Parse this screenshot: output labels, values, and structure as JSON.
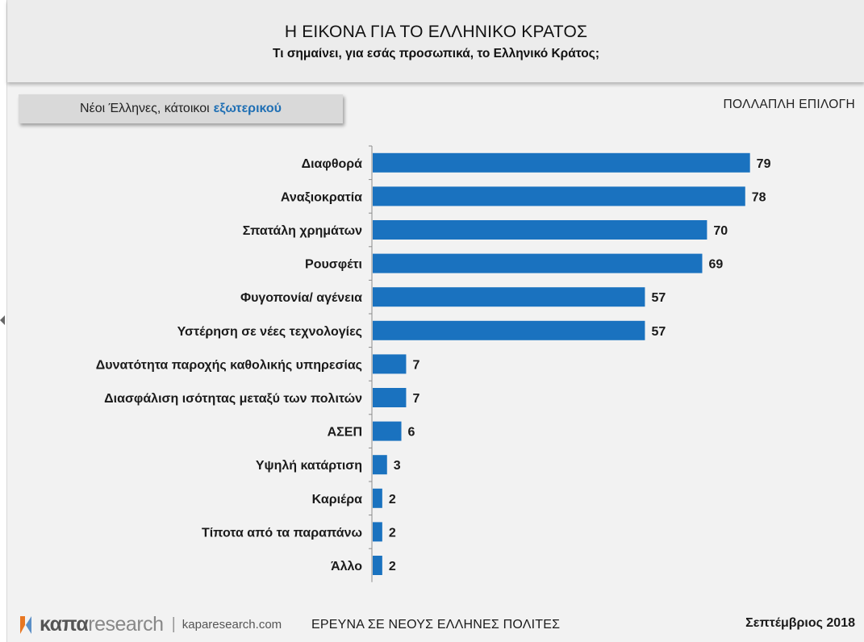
{
  "header": {
    "title": "Η ΕΙΚΟΝΑ ΓΙΑ ΤΟ ΕΛΛΗΝΙΚΟ ΚΡΑΤΟΣ",
    "subtitle": "Τι σημαίνει, για εσάς προσωπικά, το Ελληνικό Κράτος;"
  },
  "sample": {
    "label": "Νέοι Έλληνες, κάτοικοι",
    "highlight": "εξωτερικού"
  },
  "note": "ΠΟΛΛΑΠΛΗ ΕΠΙΛΟΓΗ",
  "footer": {
    "logo_kapa": "καπα",
    "logo_research": "research",
    "logo_sep": "|",
    "url": "kaparesearch.com",
    "survey": "ΕΡΕΥΝΑ ΣΕ ΝΕΟΥΣ ΕΛΛΗΝΕΣ ΠΟΛΙΤΕΣ",
    "date": "Σεπτέμβριος 2018"
  },
  "colors": {
    "bar": "#1a72bf",
    "accent": "#1f6fb4"
  },
  "icons": [
    "logo-mark-icon",
    "left-edge-arrow-icon"
  ],
  "chart_data": {
    "type": "bar",
    "orientation": "horizontal",
    "categories": [
      "Διαφθορά",
      "Αναξιοκρατία",
      "Σπατάλη χρημάτων",
      "Ρουσφέτι",
      "Φυγοπονία/ αγένεια",
      "Υστέρηση σε νέες τεχνολογίες",
      "Δυνατότητα παροχής καθολικής υπηρεσίας",
      "Διασφάλιση ισότητας μεταξύ των πολιτών",
      "ΑΣΕΠ",
      "Υψηλή κατάρτιση",
      "Καριέρα",
      "Τίποτα από τα παραπάνω",
      "Άλλο"
    ],
    "values": [
      79,
      78,
      70,
      69,
      57,
      57,
      7,
      7,
      6,
      3,
      2,
      2,
      2
    ],
    "xlim": [
      0,
      100
    ],
    "grid": false,
    "data_labels": true
  }
}
